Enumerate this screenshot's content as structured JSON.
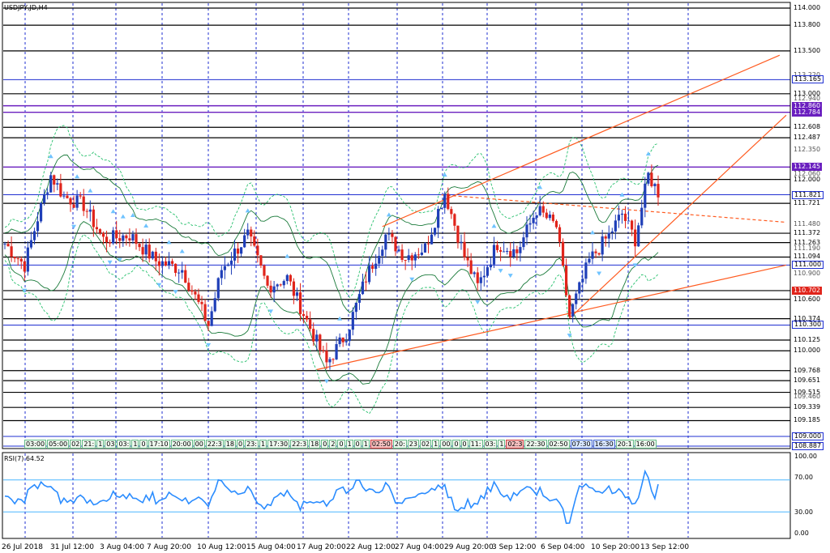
{
  "window": {
    "title": "USDJPY,JD,H4"
  },
  "rsi": {
    "label": "RSI(7) 64.52",
    "value": 64.52,
    "ticks": [
      "100.00",
      "70.00",
      "30.00",
      "0.00"
    ]
  },
  "colors": {
    "bull": "#1f3fb8",
    "bear": "#e0241b",
    "trend": "#ff5a1f",
    "band_outer": "#27c06d",
    "band_inner": "#1a7a3a",
    "grid": "#1f2fd1",
    "purple": "#6a1fbf",
    "rsi_line": "#2a8cff"
  },
  "time_labels": [
    "26 Jul 2018",
    "31 Jul 12:00",
    "3 Aug 04:00",
    "7 Aug 20:00",
    "10 Aug 12:00",
    "15 Aug 04:00",
    "17 Aug 20:00",
    "22 Aug 12:00",
    "27 Aug 04:00",
    "29 Aug 20:00",
    "3 Sep 12:00",
    "6 Sep 04:00",
    "10 Sep 20:00",
    "13 Sep 12:00"
  ],
  "session_labels": [
    "03:00",
    "05:00",
    "02",
    "21:",
    "1",
    "03",
    "03:",
    "1",
    "0",
    "17:10",
    "20:00",
    "00",
    "22:3",
    "18",
    "0",
    "23:",
    "1",
    "17:30",
    "22:3",
    "18",
    "0",
    "2",
    "0",
    "1",
    "0",
    "1",
    "02:50",
    "20:",
    "23",
    "02",
    "1",
    "00",
    "0",
    "0",
    "11:",
    "03:",
    "1",
    "02:3",
    "22:30",
    "02:50",
    "07:30",
    "16:30",
    "20:1",
    "16:00"
  ],
  "chart_data": {
    "type": "candlestick",
    "symbol": "USDJPY",
    "timeframe": "H4",
    "ylim": [
      108.887,
      114.0
    ],
    "price_labels": [
      {
        "value": 114.0,
        "label": "114.000",
        "style": "line"
      },
      {
        "value": 113.8,
        "label": "113.800",
        "style": "line"
      },
      {
        "value": 113.5,
        "label": "113.500",
        "style": "line"
      },
      {
        "value": 113.22,
        "label": "113.220",
        "style": "scale"
      },
      {
        "value": 113.165,
        "label": "113.165",
        "style": "box"
      },
      {
        "value": 113.0,
        "label": "113.000",
        "style": "line"
      },
      {
        "value": 112.94,
        "label": "112.940",
        "style": "scale"
      },
      {
        "value": 112.86,
        "label": "112.860",
        "style": "purple"
      },
      {
        "value": 112.784,
        "label": "112.784",
        "style": "purple"
      },
      {
        "value": 112.608,
        "label": "112.608",
        "style": "line"
      },
      {
        "value": 112.487,
        "label": "112.487",
        "style": "line"
      },
      {
        "value": 112.35,
        "label": "112.350",
        "style": "scale"
      },
      {
        "value": 112.145,
        "label": "112.145",
        "style": "purple"
      },
      {
        "value": 112.06,
        "label": "112.060",
        "style": "scale"
      },
      {
        "value": 112.0,
        "label": "112.000",
        "style": "line"
      },
      {
        "value": 111.821,
        "label": "111.821",
        "style": "box"
      },
      {
        "value": 111.721,
        "label": "111.721",
        "style": "line"
      },
      {
        "value": 111.48,
        "label": "111.480",
        "style": "scale"
      },
      {
        "value": 111.372,
        "label": "111.372",
        "style": "line"
      },
      {
        "value": 111.263,
        "label": "111.263",
        "style": "line"
      },
      {
        "value": 111.19,
        "label": "111.190",
        "style": "scale"
      },
      {
        "value": 111.094,
        "label": "111.094",
        "style": "line"
      },
      {
        "value": 111.0,
        "label": "111.000",
        "style": "box"
      },
      {
        "value": 110.9,
        "label": "110.900",
        "style": "scale"
      },
      {
        "value": 110.702,
        "label": "110.702",
        "style": "red"
      },
      {
        "value": 110.6,
        "label": "110.600",
        "style": "line"
      },
      {
        "value": 110.374,
        "label": "110.374",
        "style": "line"
      },
      {
        "value": 110.3,
        "label": "110.300",
        "style": "box"
      },
      {
        "value": 110.125,
        "label": "110.125",
        "style": "line"
      },
      {
        "value": 110.0,
        "label": "110.000",
        "style": "line"
      },
      {
        "value": 109.768,
        "label": "109.768",
        "style": "line"
      },
      {
        "value": 109.651,
        "label": "109.651",
        "style": "line"
      },
      {
        "value": 109.515,
        "label": "109.515",
        "style": "line"
      },
      {
        "value": 109.46,
        "label": "109.460",
        "style": "scale"
      },
      {
        "value": 109.339,
        "label": "109.339",
        "style": "line"
      },
      {
        "value": 109.185,
        "label": "109.185",
        "style": "line"
      },
      {
        "value": 109.0,
        "label": "109.000",
        "style": "box"
      },
      {
        "value": 108.887,
        "label": "108.887",
        "style": "box"
      }
    ],
    "key_points": [
      {
        "t": 0,
        "p": 111.25
      },
      {
        "t": 6,
        "p": 111.0
      },
      {
        "t": 10,
        "p": 111.55
      },
      {
        "t": 14,
        "p": 112.05
      },
      {
        "t": 18,
        "p": 111.8
      },
      {
        "t": 24,
        "p": 111.7
      },
      {
        "t": 30,
        "p": 111.3
      },
      {
        "t": 38,
        "p": 111.35
      },
      {
        "t": 46,
        "p": 111.05
      },
      {
        "t": 54,
        "p": 110.95
      },
      {
        "t": 62,
        "p": 110.3
      },
      {
        "t": 66,
        "p": 110.95
      },
      {
        "t": 74,
        "p": 111.35
      },
      {
        "t": 80,
        "p": 110.75
      },
      {
        "t": 86,
        "p": 110.85
      },
      {
        "t": 92,
        "p": 110.35
      },
      {
        "t": 98,
        "p": 109.85
      },
      {
        "t": 104,
        "p": 110.2
      },
      {
        "t": 110,
        "p": 110.85
      },
      {
        "t": 116,
        "p": 111.35
      },
      {
        "t": 122,
        "p": 111.1
      },
      {
        "t": 128,
        "p": 111.2
      },
      {
        "t": 134,
        "p": 111.85
      },
      {
        "t": 140,
        "p": 111.1
      },
      {
        "t": 144,
        "p": 110.75
      },
      {
        "t": 150,
        "p": 111.25
      },
      {
        "t": 156,
        "p": 111.15
      },
      {
        "t": 162,
        "p": 111.65
      },
      {
        "t": 168,
        "p": 111.45
      },
      {
        "t": 172,
        "p": 110.4
      },
      {
        "t": 178,
        "p": 111.05
      },
      {
        "t": 184,
        "p": 111.35
      },
      {
        "t": 188,
        "p": 111.6
      },
      {
        "t": 192,
        "p": 111.3
      },
      {
        "t": 196,
        "p": 112.05
      },
      {
        "t": 199,
        "p": 111.85
      }
    ],
    "candle_count": 200,
    "trendlines": [
      {
        "from": {
          "t": 115,
          "p": 111.45
        },
        "to": {
          "t": 236,
          "p": 113.45
        }
      },
      {
        "from": {
          "t": 95,
          "p": 109.78
        },
        "to": {
          "t": 238,
          "p": 111.0
        }
      },
      {
        "from": {
          "t": 172,
          "p": 110.38
        },
        "to": {
          "t": 238,
          "p": 112.75
        }
      },
      {
        "from": {
          "t": 133,
          "p": 111.82
        },
        "to": {
          "t": 238,
          "p": 111.5
        },
        "dashed": true
      }
    ],
    "rsi_levels": [
      70,
      30
    ]
  }
}
